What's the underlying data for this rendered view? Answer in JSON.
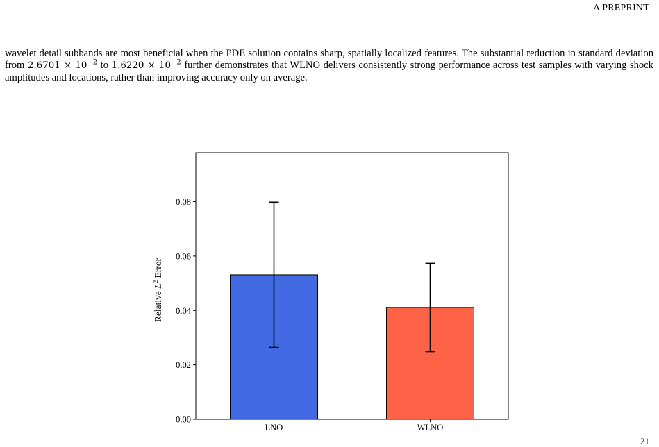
{
  "header": {
    "first_letter": "A",
    "rest": "PREPRINT"
  },
  "body": {
    "p1_start": "wavelet detail subbands are most beneficial when the PDE solution contains sharp, spatially localized features. The substantial reduction in standard deviation from ",
    "std_lno_mantissa": "2.6701",
    "times": "×",
    "base": "10",
    "exponent": "−2",
    "between": " to ",
    "std_wlno_mantissa": "1.6220",
    "p1_end": " further demonstrates that WLNO delivers consistently strong performance across test samples with varying shock amplitudes and locations, rather than improving accuracy only on average."
  },
  "chart_data": {
    "type": "bar",
    "categories": [
      "LNO",
      "WLNO"
    ],
    "values": [
      0.0531,
      0.0411
    ],
    "errors": [
      0.026701,
      0.01622
    ],
    "colors": [
      "#4169e1",
      "#ff6347"
    ],
    "ylabel_prefix": "Relative ",
    "ylabel_symbol": "L",
    "ylabel_power": "2",
    "ylabel_suffix": " Error",
    "ylim": [
      0,
      0.098
    ],
    "yticks": [
      "0.00",
      "0.02",
      "0.04",
      "0.06",
      "0.08"
    ],
    "ytick_values": [
      0,
      0.02,
      0.04,
      0.06,
      0.08
    ],
    "grid": false,
    "legend": "none"
  },
  "page_number": "21"
}
